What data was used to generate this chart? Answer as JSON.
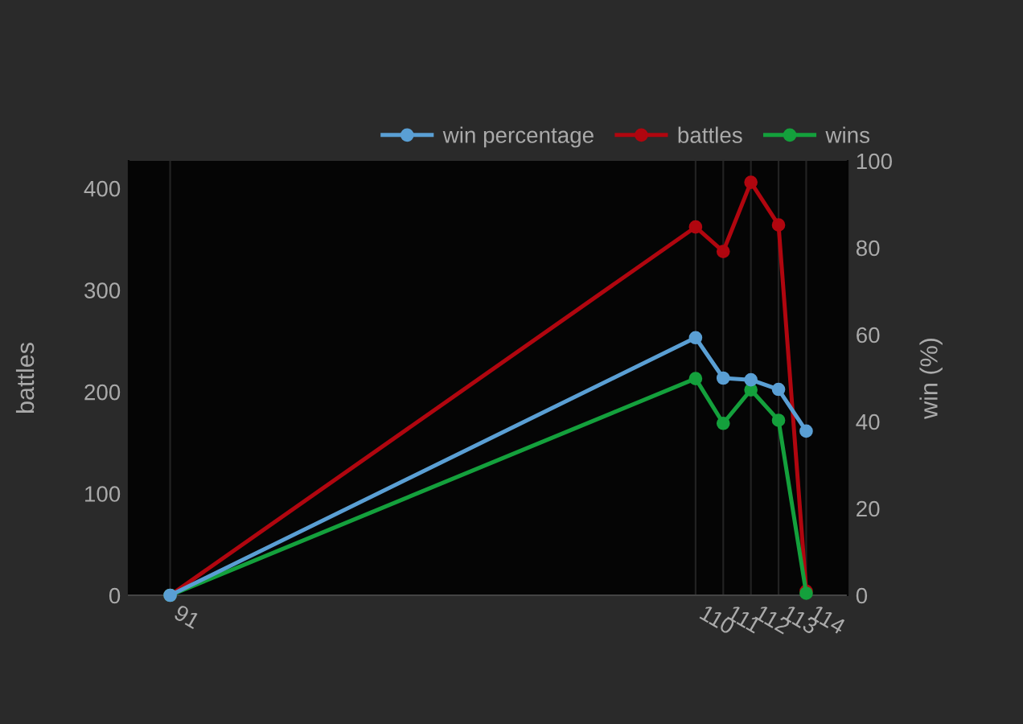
{
  "chart_data": {
    "type": "line",
    "ylabel": "battles",
    "y2label": "win (%)",
    "x": [
      91,
      110,
      111,
      112,
      113,
      114
    ],
    "series": [
      {
        "name": "win percentage",
        "color": "#5a9fd4",
        "axis": "y2",
        "values": [
          0,
          59.3,
          50,
          49.6,
          47.4,
          37.8
        ]
      },
      {
        "name": "battles",
        "color": "#b0060f",
        "values": [
          0,
          362,
          338,
          406,
          364,
          4
        ]
      },
      {
        "name": "wins",
        "color": "#14a03c",
        "values": [
          0,
          213,
          169,
          202,
          172,
          2
        ]
      }
    ],
    "xlim": [
      89.5,
      115.5
    ],
    "xticks": [
      91,
      110,
      111,
      112,
      113,
      114
    ],
    "ylim": [
      0,
      427
    ],
    "yticks": [
      0,
      100,
      200,
      300,
      400
    ],
    "y2lim": [
      0,
      100
    ],
    "y2ticks": [
      0,
      20,
      40,
      60,
      80,
      100
    ],
    "grid": "x",
    "legend": "top right",
    "marker": "circle",
    "line_style": "solid"
  }
}
